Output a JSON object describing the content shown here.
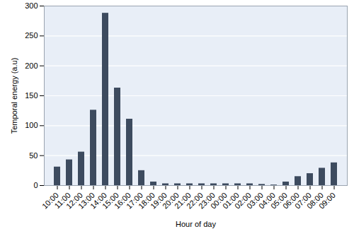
{
  "chart_data": {
    "type": "bar",
    "x_label": "Hour of day",
    "y_label": "Temporal energy (a.u)",
    "categories": [
      "10:00",
      "11:00",
      "12:00",
      "13:00",
      "14:00",
      "15:00",
      "16:00",
      "17:00",
      "18:00",
      "19:00",
      "20:00",
      "21:00",
      "22:00",
      "23:00",
      "00:00",
      "01:00",
      "02:00",
      "03:00",
      "04:00",
      "05:00",
      "06:00",
      "07:00",
      "08:00",
      "09:00"
    ],
    "values": [
      31,
      43,
      56,
      126,
      288,
      163,
      111,
      25,
      6,
      3,
      3,
      3,
      3,
      3,
      3,
      3,
      3,
      2,
      1,
      6,
      15,
      20,
      29,
      38
    ],
    "color": "#3d4b5f",
    "ylim": [
      0,
      300
    ],
    "yticks": [
      0,
      50,
      100,
      150,
      200,
      250,
      300
    ],
    "grid": true
  }
}
